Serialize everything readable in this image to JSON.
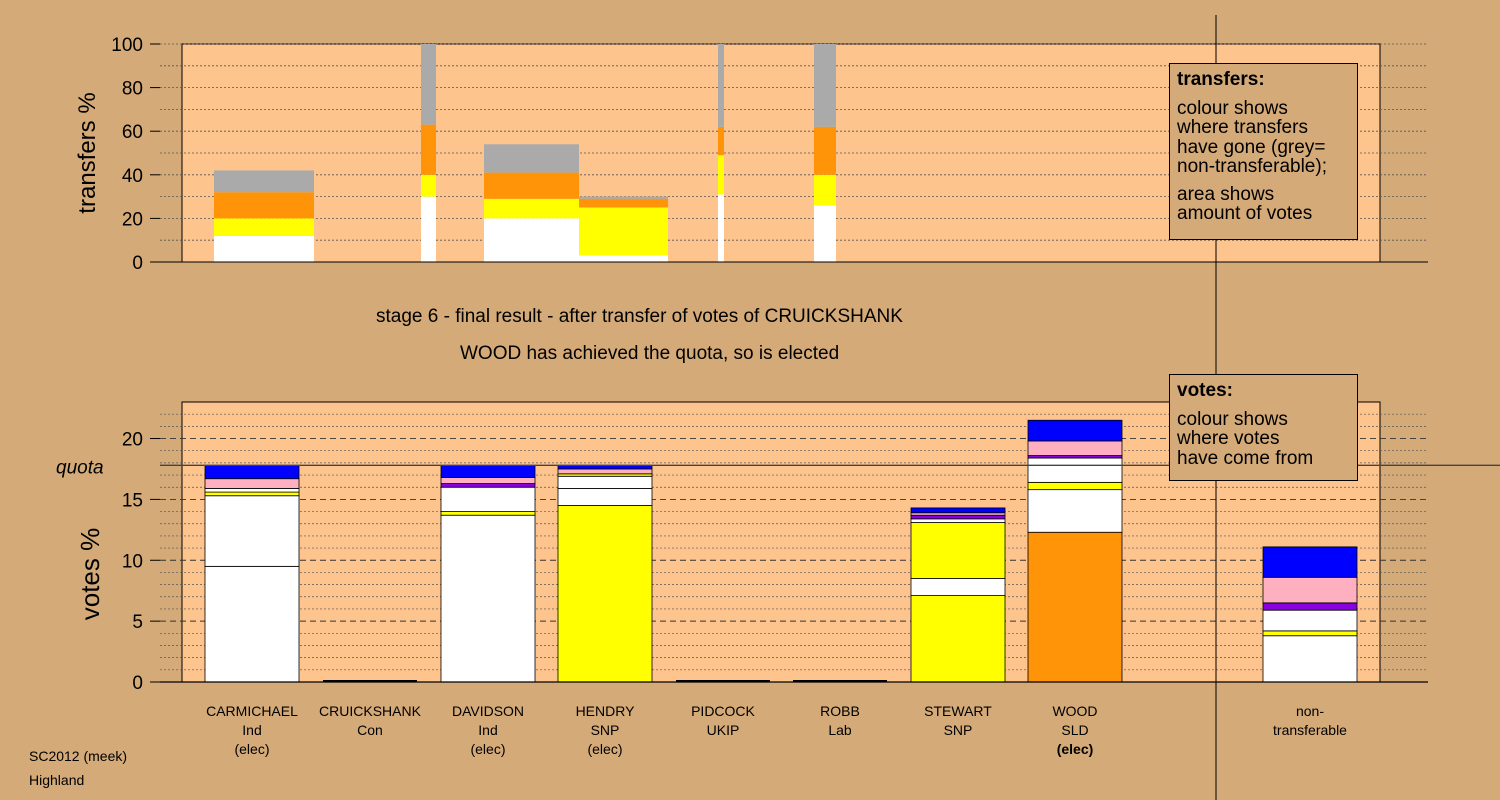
{
  "header": {
    "stage_line": "stage 6 - final result - after transfer of votes of CRUICKSHANK",
    "result_line": "WOOD has achieved the quota, so is elected"
  },
  "legends": {
    "transfers": {
      "title": "transfers:",
      "lines": [
        "colour shows",
        "where transfers",
        "have gone (grey=",
        "non-transferable);"
      ],
      "lines2": [
        "area shows",
        "amount of votes"
      ]
    },
    "votes": {
      "title": "votes:",
      "lines": [
        "colour shows",
        "where votes",
        "have come from"
      ]
    }
  },
  "footer": {
    "line1": "SC2012 (meek)",
    "line2": "Highland"
  },
  "colors": {
    "background": "#d4aa78",
    "plot_bg": "#fdc48e",
    "white": "#ffffff",
    "yellow": "#ffff00",
    "orange": "#ff9408",
    "grey": "#aaaaaa",
    "pink": "#ffb0c0",
    "purple": "#8800dd",
    "blue": "#0000ff"
  },
  "candidates": [
    {
      "name": "CARMICHAEL",
      "party": "Ind",
      "status": "(elec)",
      "bold": false
    },
    {
      "name": "CRUICKSHANK",
      "party": "Con",
      "status": "",
      "bold": false
    },
    {
      "name": "DAVIDSON",
      "party": "Ind",
      "status": "(elec)",
      "bold": false
    },
    {
      "name": "HENDRY",
      "party": "SNP",
      "status": "(elec)",
      "bold": false
    },
    {
      "name": "PIDCOCK",
      "party": "UKIP",
      "status": "",
      "bold": false
    },
    {
      "name": "ROBB",
      "party": "Lab",
      "status": "",
      "bold": false
    },
    {
      "name": "STEWART",
      "party": "SNP",
      "status": "",
      "bold": false
    },
    {
      "name": "WOOD",
      "party": "SLD",
      "status": "(elec)",
      "bold": true
    },
    {
      "name": "non-",
      "party": "transferable",
      "status": "",
      "bold": false
    }
  ],
  "chart_data": [
    {
      "type": "bar",
      "ylabel": "transfers %",
      "ylim": [
        0,
        100
      ],
      "yticks": [
        0,
        20,
        40,
        60,
        80,
        100
      ],
      "x_range_percent": [
        0,
        100
      ],
      "note": "variable-width stacked bars; x_start/x_end in cumulative percent of votes",
      "bars": [
        {
          "x_start": 0,
          "x_end": 10,
          "segments": [
            [
              "white",
              0,
              12
            ],
            [
              "yellow",
              12,
              20
            ],
            [
              "orange",
              20,
              32
            ],
            [
              "grey",
              32,
              42
            ]
          ]
        },
        {
          "x_start": 20.7,
          "x_end": 22.2,
          "segments": [
            [
              "white",
              0,
              30
            ],
            [
              "yellow",
              30,
              40
            ],
            [
              "orange",
              40,
              63
            ],
            [
              "grey",
              63,
              100
            ]
          ]
        },
        {
          "x_start": 27,
          "x_end": 36.5,
          "segments": [
            [
              "white",
              0,
              20
            ],
            [
              "yellow",
              20,
              29
            ],
            [
              "orange",
              29,
              41
            ],
            [
              "grey",
              41,
              54
            ]
          ]
        },
        {
          "x_start": 36.5,
          "x_end": 45.4,
          "segments": [
            [
              "white",
              0,
              3
            ],
            [
              "yellow",
              3,
              25
            ],
            [
              "orange",
              25,
              29
            ],
            [
              "grey",
              29,
              30
            ]
          ]
        },
        {
          "x_start": 50.4,
          "x_end": 51,
          "segments": [
            [
              "white",
              0,
              31
            ],
            [
              "yellow",
              31,
              49
            ],
            [
              "orange",
              49,
              62
            ],
            [
              "grey",
              62,
              100
            ]
          ]
        },
        {
          "x_start": 60,
          "x_end": 62.2,
          "segments": [
            [
              "white",
              0,
              26
            ],
            [
              "yellow",
              26,
              40
            ],
            [
              "orange",
              40,
              62
            ],
            [
              "grey",
              62,
              100
            ]
          ]
        }
      ]
    },
    {
      "type": "bar",
      "ylabel": "votes %",
      "ylim": [
        0,
        23
      ],
      "yticks": [
        0,
        5,
        10,
        15,
        20
      ],
      "quota": 17.8,
      "quota_label": "quota",
      "stacks": [
        {
          "candidate": "CARMICHAEL",
          "segments": [
            [
              "white",
              0,
              9.5
            ],
            [
              "white",
              9.5,
              15.3
            ],
            [
              "yellow",
              15.3,
              15.6
            ],
            [
              "white",
              15.6,
              15.9
            ],
            [
              "pink",
              15.9,
              16.7
            ],
            [
              "blue",
              16.7,
              17.8
            ]
          ]
        },
        {
          "candidate": "CRUICKSHANK",
          "segments": []
        },
        {
          "candidate": "DAVIDSON",
          "segments": [
            [
              "white",
              0,
              13.7
            ],
            [
              "yellow",
              13.7,
              14.0
            ],
            [
              "white",
              14.0,
              16.0
            ],
            [
              "purple",
              16.0,
              16.3
            ],
            [
              "pink",
              16.3,
              16.8
            ],
            [
              "blue",
              16.8,
              17.8
            ]
          ]
        },
        {
          "candidate": "HENDRY",
          "segments": [
            [
              "yellow",
              0,
              14.5
            ],
            [
              "white",
              14.5,
              15.9
            ],
            [
              "white",
              15.9,
              16.9
            ],
            [
              "yellow",
              16.9,
              17.1
            ],
            [
              "pink",
              17.1,
              17.5
            ],
            [
              "blue",
              17.5,
              17.8
            ]
          ]
        },
        {
          "candidate": "PIDCOCK",
          "segments": []
        },
        {
          "candidate": "ROBB",
          "segments": []
        },
        {
          "candidate": "STEWART",
          "segments": [
            [
              "yellow",
              0,
              7.1
            ],
            [
              "white",
              7.1,
              8.5
            ],
            [
              "yellow",
              8.5,
              13.1
            ],
            [
              "white",
              13.1,
              13.4
            ],
            [
              "purple",
              13.4,
              13.7
            ],
            [
              "pink",
              13.7,
              13.9
            ],
            [
              "blue",
              13.9,
              14.3
            ]
          ]
        },
        {
          "candidate": "WOOD",
          "segments": [
            [
              "orange",
              0,
              12.3
            ],
            [
              "white",
              12.3,
              15.8
            ],
            [
              "yellow",
              15.8,
              16.4
            ],
            [
              "white",
              16.4,
              18.4
            ],
            [
              "purple",
              18.4,
              18.6
            ],
            [
              "pink",
              18.6,
              19.8
            ],
            [
              "blue",
              19.8,
              21.5
            ]
          ]
        },
        {
          "candidate": "non-transferable",
          "segments": [
            [
              "white",
              0,
              3.8
            ],
            [
              "yellow",
              3.8,
              4.2
            ],
            [
              "white",
              4.2,
              5.9
            ],
            [
              "purple",
              5.9,
              6.5
            ],
            [
              "pink",
              6.5,
              8.6
            ],
            [
              "blue",
              8.6,
              11.1
            ]
          ]
        }
      ]
    }
  ]
}
